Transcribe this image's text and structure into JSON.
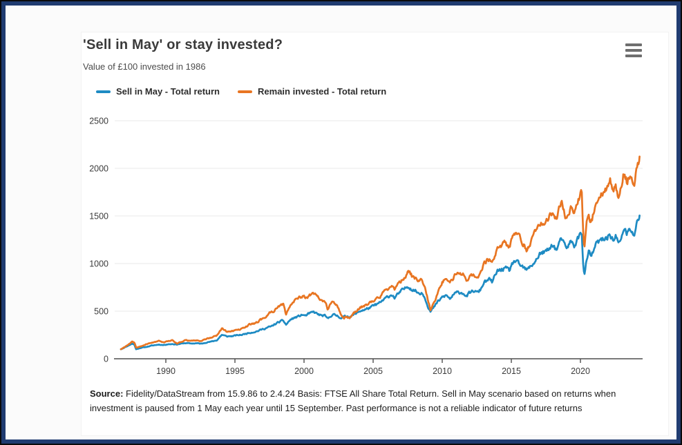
{
  "frame": {
    "outer_color": "#0a0a0a",
    "inner_color": "#1f3b70"
  },
  "header": {
    "title": "'Sell in May' or stay invested?",
    "subtitle": "Value of £100 invested in 1986"
  },
  "footnote": {
    "label": "Source:",
    "text": " Fidelity/DataStream from 15.9.86 to 2.4.24 Basis: FTSE All Share Total Return. Sell in May scenario based on returns when investment is paused from 1 May each year until 15 September. Past performance is not a reliable indicator of future returns"
  },
  "chart_data": {
    "type": "line",
    "title": "'Sell in May' or stay invested?",
    "subtitle": "Value of £100 invested in 1986",
    "xlabel": "",
    "ylabel": "",
    "x_range": [
      1986.3,
      2024.5
    ],
    "y_range": [
      0,
      2500
    ],
    "x_ticks": [
      1990,
      1995,
      2000,
      2005,
      2010,
      2015,
      2020
    ],
    "y_ticks": [
      0,
      500,
      1000,
      1500,
      2000,
      2500
    ],
    "grid": "horizontal",
    "legend_position": "top",
    "grid_color": "#e8e8e8",
    "axis_color": "#4d4d4d",
    "jitter_pct": 0.02,
    "point_step": 0.05,
    "series": [
      {
        "name": "Sell in May - Total return",
        "color": "#1e8bc3",
        "points": [
          [
            1986.75,
            100
          ],
          [
            1987.0,
            118
          ],
          [
            1987.3,
            140
          ],
          [
            1987.55,
            158
          ],
          [
            1987.72,
            150
          ],
          [
            1987.85,
            100
          ],
          [
            1988.1,
            112
          ],
          [
            1988.5,
            122
          ],
          [
            1989.0,
            138
          ],
          [
            1989.5,
            150
          ],
          [
            1989.8,
            144
          ],
          [
            1990.1,
            152
          ],
          [
            1990.5,
            155
          ],
          [
            1990.8,
            150
          ],
          [
            1991.1,
            158
          ],
          [
            1991.4,
            165
          ],
          [
            1991.8,
            160
          ],
          [
            1992.2,
            163
          ],
          [
            1992.6,
            158
          ],
          [
            1992.9,
            172
          ],
          [
            1993.3,
            180
          ],
          [
            1993.7,
            195
          ],
          [
            1994.05,
            252
          ],
          [
            1994.4,
            235
          ],
          [
            1994.8,
            238
          ],
          [
            1995.1,
            245
          ],
          [
            1995.5,
            252
          ],
          [
            1996.0,
            272
          ],
          [
            1996.5,
            285
          ],
          [
            1997.0,
            310
          ],
          [
            1997.4,
            330
          ],
          [
            1997.65,
            340
          ],
          [
            1998.0,
            372
          ],
          [
            1998.3,
            392
          ],
          [
            1998.5,
            400
          ],
          [
            1998.7,
            358
          ],
          [
            1999.0,
            408
          ],
          [
            1999.3,
            430
          ],
          [
            1999.6,
            445
          ],
          [
            1999.9,
            462
          ],
          [
            2000.1,
            452
          ],
          [
            2000.4,
            475
          ],
          [
            2000.7,
            490
          ],
          [
            2000.95,
            472
          ],
          [
            2001.2,
            455
          ],
          [
            2001.5,
            450
          ],
          [
            2001.72,
            418
          ],
          [
            2001.9,
            450
          ],
          [
            2002.1,
            462
          ],
          [
            2002.4,
            452
          ],
          [
            2002.7,
            430
          ],
          [
            2002.9,
            440
          ],
          [
            2003.1,
            448
          ],
          [
            2003.3,
            442
          ],
          [
            2003.6,
            462
          ],
          [
            2003.85,
            482
          ],
          [
            2004.1,
            505
          ],
          [
            2004.5,
            520
          ],
          [
            2005.0,
            552
          ],
          [
            2005.5,
            588
          ],
          [
            2006.0,
            645
          ],
          [
            2006.35,
            675
          ],
          [
            2006.55,
            640
          ],
          [
            2007.0,
            705
          ],
          [
            2007.3,
            738
          ],
          [
            2007.55,
            765
          ],
          [
            2007.8,
            730
          ],
          [
            2008.05,
            715
          ],
          [
            2008.35,
            685
          ],
          [
            2008.5,
            700
          ],
          [
            2008.75,
            645
          ],
          [
            2008.95,
            560
          ],
          [
            2009.15,
            495
          ],
          [
            2009.4,
            540
          ],
          [
            2009.7,
            600
          ],
          [
            2010.0,
            645
          ],
          [
            2010.3,
            665
          ],
          [
            2010.55,
            630
          ],
          [
            2010.9,
            680
          ],
          [
            2011.2,
            700
          ],
          [
            2011.55,
            690
          ],
          [
            2011.75,
            655
          ],
          [
            2012.0,
            690
          ],
          [
            2012.3,
            712
          ],
          [
            2012.55,
            695
          ],
          [
            2012.8,
            730
          ],
          [
            2013.0,
            800
          ],
          [
            2013.4,
            830
          ],
          [
            2013.6,
            805
          ],
          [
            2014.0,
            920
          ],
          [
            2014.5,
            950
          ],
          [
            2014.85,
            925
          ],
          [
            2015.2,
            1030
          ],
          [
            2015.6,
            985
          ],
          [
            2015.95,
            945
          ],
          [
            2016.15,
            930
          ],
          [
            2016.5,
            985
          ],
          [
            2016.8,
            1040
          ],
          [
            2017.05,
            1100
          ],
          [
            2017.4,
            1120
          ],
          [
            2017.7,
            1140
          ],
          [
            2018.0,
            1205
          ],
          [
            2018.25,
            1140
          ],
          [
            2018.45,
            1210
          ],
          [
            2018.65,
            1255
          ],
          [
            2018.95,
            1150
          ],
          [
            2019.3,
            1230
          ],
          [
            2019.55,
            1190
          ],
          [
            2019.9,
            1285
          ],
          [
            2020.1,
            1320
          ],
          [
            2020.18,
            1060
          ],
          [
            2020.28,
            862
          ],
          [
            2020.45,
            1040
          ],
          [
            2020.6,
            1115
          ],
          [
            2020.78,
            1075
          ],
          [
            2020.95,
            1135
          ],
          [
            2021.15,
            1205
          ],
          [
            2021.45,
            1240
          ],
          [
            2021.7,
            1250
          ],
          [
            2021.95,
            1280
          ],
          [
            2022.15,
            1310
          ],
          [
            2022.4,
            1235
          ],
          [
            2022.55,
            1285
          ],
          [
            2022.78,
            1200
          ],
          [
            2022.95,
            1265
          ],
          [
            2023.12,
            1370
          ],
          [
            2023.35,
            1320
          ],
          [
            2023.55,
            1350
          ],
          [
            2023.72,
            1310
          ],
          [
            2023.88,
            1295
          ],
          [
            2024.05,
            1400
          ],
          [
            2024.18,
            1455
          ],
          [
            2024.28,
            1505
          ]
        ]
      },
      {
        "name": "Remain invested - Total return",
        "color": "#e87522",
        "points": [
          [
            1986.75,
            100
          ],
          [
            1987.0,
            122
          ],
          [
            1987.3,
            152
          ],
          [
            1987.55,
            180
          ],
          [
            1987.72,
            170
          ],
          [
            1987.85,
            115
          ],
          [
            1988.1,
            128
          ],
          [
            1988.5,
            148
          ],
          [
            1989.0,
            170
          ],
          [
            1989.5,
            186
          ],
          [
            1989.8,
            172
          ],
          [
            1990.1,
            180
          ],
          [
            1990.5,
            195
          ],
          [
            1990.8,
            160
          ],
          [
            1991.1,
            178
          ],
          [
            1991.4,
            195
          ],
          [
            1991.8,
            188
          ],
          [
            1992.2,
            195
          ],
          [
            1992.6,
            185
          ],
          [
            1992.9,
            208
          ],
          [
            1993.3,
            222
          ],
          [
            1993.7,
            245
          ],
          [
            1994.05,
            318
          ],
          [
            1994.4,
            288
          ],
          [
            1994.8,
            292
          ],
          [
            1995.1,
            300
          ],
          [
            1995.5,
            315
          ],
          [
            1996.0,
            355
          ],
          [
            1996.5,
            375
          ],
          [
            1997.0,
            420
          ],
          [
            1997.4,
            465
          ],
          [
            1997.65,
            500
          ],
          [
            1997.8,
            480
          ],
          [
            1998.0,
            530
          ],
          [
            1998.3,
            560
          ],
          [
            1998.5,
            580
          ],
          [
            1998.7,
            462
          ],
          [
            1999.0,
            560
          ],
          [
            1999.3,
            615
          ],
          [
            1999.6,
            635
          ],
          [
            1999.9,
            660
          ],
          [
            2000.1,
            640
          ],
          [
            2000.4,
            668
          ],
          [
            2000.7,
            685
          ],
          [
            2000.95,
            655
          ],
          [
            2001.2,
            618
          ],
          [
            2001.5,
            600
          ],
          [
            2001.72,
            518
          ],
          [
            2001.9,
            580
          ],
          [
            2002.1,
            598
          ],
          [
            2002.4,
            560
          ],
          [
            2002.7,
            462
          ],
          [
            2002.9,
            432
          ],
          [
            2003.1,
            445
          ],
          [
            2003.3,
            425
          ],
          [
            2003.6,
            475
          ],
          [
            2003.85,
            510
          ],
          [
            2004.1,
            540
          ],
          [
            2004.5,
            562
          ],
          [
            2005.0,
            610
          ],
          [
            2005.5,
            655
          ],
          [
            2006.0,
            730
          ],
          [
            2006.35,
            772
          ],
          [
            2006.55,
            730
          ],
          [
            2007.0,
            815
          ],
          [
            2007.3,
            858
          ],
          [
            2007.55,
            925
          ],
          [
            2007.8,
            870
          ],
          [
            2008.05,
            850
          ],
          [
            2008.35,
            800
          ],
          [
            2008.5,
            830
          ],
          [
            2008.75,
            740
          ],
          [
            2008.95,
            620
          ],
          [
            2009.15,
            512
          ],
          [
            2009.4,
            585
          ],
          [
            2009.7,
            690
          ],
          [
            2010.0,
            800
          ],
          [
            2010.3,
            845
          ],
          [
            2010.55,
            785
          ],
          [
            2010.9,
            870
          ],
          [
            2011.2,
            915
          ],
          [
            2011.55,
            890
          ],
          [
            2011.75,
            800
          ],
          [
            2012.0,
            865
          ],
          [
            2012.3,
            890
          ],
          [
            2012.55,
            855
          ],
          [
            2012.8,
            905
          ],
          [
            2013.0,
            1000
          ],
          [
            2013.4,
            1050
          ],
          [
            2013.6,
            1015
          ],
          [
            2014.0,
            1160
          ],
          [
            2014.5,
            1210
          ],
          [
            2014.85,
            1165
          ],
          [
            2015.2,
            1330
          ],
          [
            2015.6,
            1265
          ],
          [
            2015.95,
            1185
          ],
          [
            2016.15,
            1140
          ],
          [
            2016.5,
            1265
          ],
          [
            2016.8,
            1335
          ],
          [
            2017.05,
            1410
          ],
          [
            2017.4,
            1435
          ],
          [
            2017.7,
            1465
          ],
          [
            2018.0,
            1555
          ],
          [
            2018.25,
            1455
          ],
          [
            2018.45,
            1565
          ],
          [
            2018.65,
            1630
          ],
          [
            2018.95,
            1470
          ],
          [
            2019.3,
            1600
          ],
          [
            2019.55,
            1540
          ],
          [
            2019.9,
            1690
          ],
          [
            2020.1,
            1765
          ],
          [
            2020.18,
            1400
          ],
          [
            2020.28,
            1160
          ],
          [
            2020.45,
            1420
          ],
          [
            2020.6,
            1470
          ],
          [
            2020.78,
            1430
          ],
          [
            2020.95,
            1525
          ],
          [
            2021.15,
            1630
          ],
          [
            2021.45,
            1700
          ],
          [
            2021.7,
            1745
          ],
          [
            2021.95,
            1825
          ],
          [
            2022.15,
            1885
          ],
          [
            2022.4,
            1730
          ],
          [
            2022.55,
            1815
          ],
          [
            2022.78,
            1690
          ],
          [
            2022.95,
            1790
          ],
          [
            2023.12,
            1945
          ],
          [
            2023.35,
            1870
          ],
          [
            2023.55,
            1915
          ],
          [
            2023.72,
            1865
          ],
          [
            2023.88,
            1840
          ],
          [
            2024.05,
            1985
          ],
          [
            2024.18,
            2060
          ],
          [
            2024.28,
            2125
          ]
        ]
      }
    ]
  }
}
